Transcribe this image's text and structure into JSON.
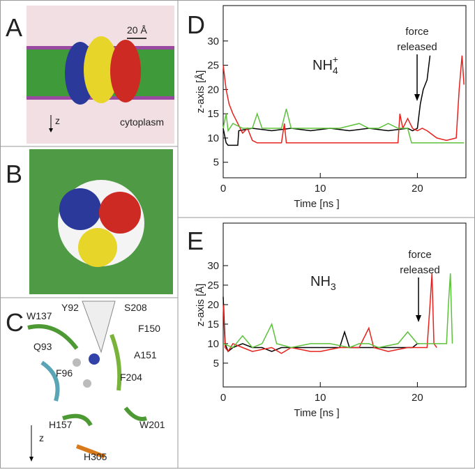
{
  "figure": {
    "panel_a": {
      "label": "A",
      "scale": "20 Å",
      "region": "cytoplasm",
      "axis": "z"
    },
    "panel_b": {
      "label": "B"
    },
    "panel_c": {
      "label": "C",
      "axis": "z",
      "residues": [
        "W137",
        "Y92",
        "S208",
        "F150",
        "Q93",
        "A151",
        "F96",
        "F204",
        "H157",
        "W201",
        "H305"
      ]
    }
  },
  "chart_data": [
    {
      "type": "line",
      "panel": "D",
      "xlabel": "Time [ns ]",
      "ylabel": "z-axis [Å]",
      "species": {
        "base": "NH",
        "sub": "4",
        "sup": "+"
      },
      "annotation": [
        "force",
        "released"
      ],
      "xlim": [
        0,
        25
      ],
      "xticks": [
        0,
        10,
        20
      ],
      "ylim": [
        1.8,
        37.3
      ],
      "yticks": [
        5,
        10,
        15,
        20,
        25,
        30
      ],
      "series": [
        {
          "color": "#000000",
          "x": [
            0,
            0.3,
            0.5,
            1.5,
            1.6,
            3,
            5,
            7,
            9,
            11,
            13,
            15,
            17,
            19,
            19.5,
            20,
            20.3,
            20.6,
            21,
            21.3
          ],
          "values": [
            12,
            9,
            8.5,
            8.5,
            11.5,
            12,
            11.5,
            12,
            11.5,
            12,
            11.5,
            12,
            11.5,
            12,
            11.5,
            12,
            17,
            20,
            22,
            27
          ]
        },
        {
          "color": "#e8201c",
          "x": [
            0,
            0.3,
            0.6,
            1,
            1.5,
            2,
            2.5,
            3,
            3.5,
            5,
            6,
            6.3,
            6.5,
            8,
            10,
            12,
            14,
            16,
            18,
            18.2,
            18.5,
            19,
            19.5,
            20,
            20.5,
            21,
            22,
            23,
            24,
            24.3,
            24.6,
            24.8
          ],
          "values": [
            25,
            20,
            17,
            15,
            13,
            11,
            12,
            9.5,
            9,
            9,
            9,
            13,
            9,
            9,
            9,
            9,
            9,
            9,
            9,
            15,
            12,
            14,
            12,
            11.5,
            12,
            11.5,
            10,
            9.5,
            10,
            20,
            27,
            21
          ]
        },
        {
          "color": "#5cc13a",
          "x": [
            0,
            0.3,
            0.5,
            1,
            2,
            3,
            3.5,
            4,
            5,
            6,
            6.5,
            7,
            8,
            10,
            12,
            14,
            15,
            16,
            17,
            18,
            19,
            19.4,
            20,
            22,
            24,
            24.8
          ],
          "values": [
            12,
            15,
            11.5,
            13,
            12,
            12,
            15,
            12,
            12,
            12,
            16,
            12,
            12,
            12,
            12,
            13,
            12,
            12,
            13,
            12,
            12,
            9,
            9,
            9,
            9,
            9
          ]
        }
      ]
    },
    {
      "type": "line",
      "panel": "E",
      "xlabel": "Time [ns ]",
      "ylabel": "z-axis [Å]",
      "species": {
        "base": "NH",
        "sub": "3"
      },
      "annotation": [
        "force",
        "released"
      ],
      "xlim": [
        0,
        25
      ],
      "xticks": [
        0,
        10,
        20
      ],
      "ylim": [
        -1.1,
        40.9
      ],
      "yticks": [
        5,
        10,
        15,
        20,
        25,
        30
      ],
      "series": [
        {
          "color": "#000000",
          "x": [
            0,
            0.2,
            0.5,
            1,
            2,
            3,
            4,
            5,
            6,
            8,
            10,
            12,
            12.5,
            13,
            15,
            17,
            19,
            19.5,
            20,
            20.2
          ],
          "values": [
            22,
            10,
            8,
            9,
            10,
            9,
            9,
            8,
            9,
            9,
            9,
            9,
            13,
            9,
            9,
            9,
            9,
            9,
            10,
            10
          ]
        },
        {
          "color": "#e8201c",
          "x": [
            0,
            0.2,
            0.5,
            1,
            2,
            3,
            5,
            6,
            7,
            9,
            10,
            12,
            14,
            15,
            15.5,
            17,
            19,
            20,
            21,
            21.3,
            21.5,
            21.7,
            22
          ],
          "values": [
            20,
            9,
            8,
            10,
            9,
            8,
            9,
            7.5,
            9,
            8,
            8,
            9,
            9,
            14,
            9,
            8,
            9,
            9,
            9,
            20,
            28,
            10,
            9
          ]
        },
        {
          "color": "#5cc13a",
          "x": [
            0,
            1,
            2,
            3,
            4,
            5,
            5.5,
            7,
            9,
            11,
            13,
            14,
            15,
            16,
            18,
            19,
            20,
            21,
            22,
            23,
            23.2,
            23.4,
            23.6
          ],
          "values": [
            10,
            9,
            12,
            9,
            10,
            15,
            10,
            9,
            10,
            10,
            9,
            10,
            10,
            9,
            10,
            13,
            10,
            10,
            10,
            10,
            20,
            28,
            10
          ]
        }
      ]
    }
  ]
}
